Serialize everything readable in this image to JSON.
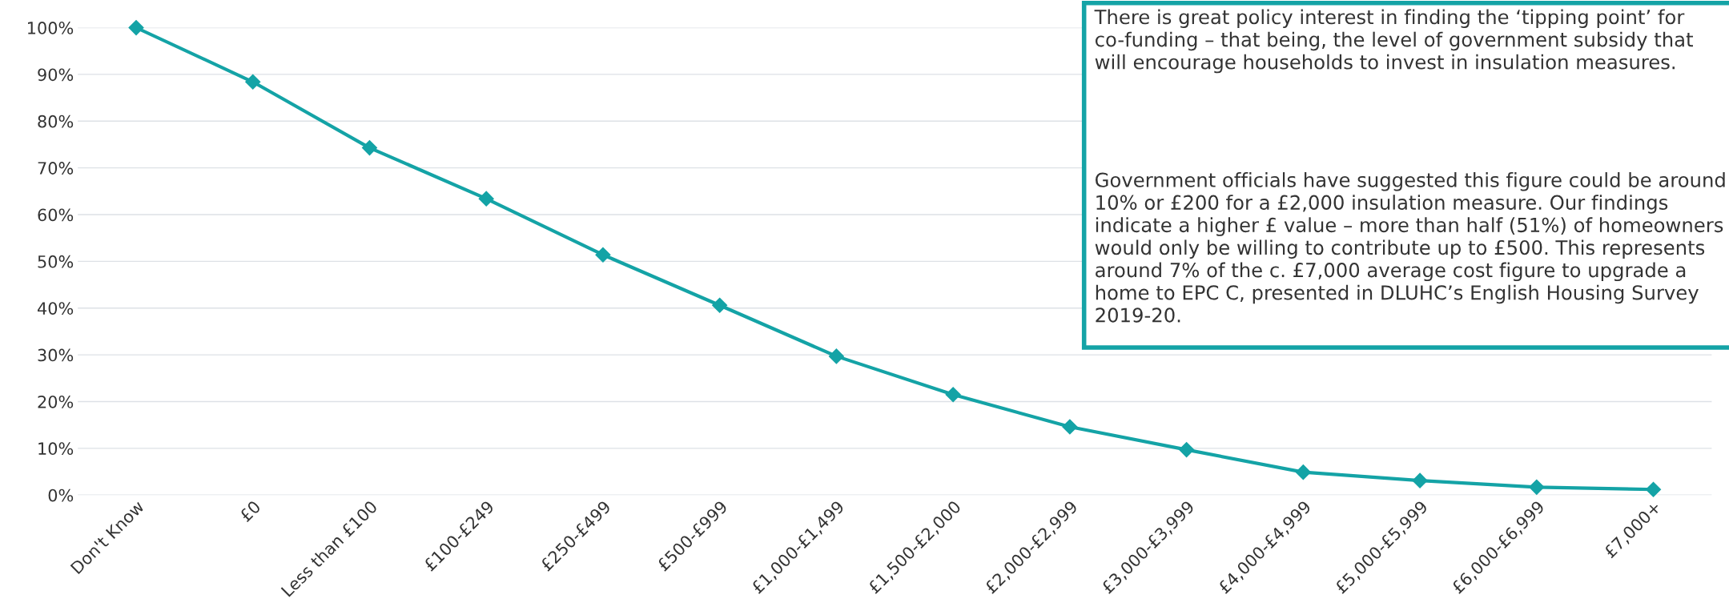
{
  "chart_data": {
    "type": "line",
    "categories": [
      "Don't Know",
      "£0",
      "Less than £100",
      "£100-£249",
      "£250-£499",
      "£500-£999",
      "£1,000-£1,499",
      "£1,500-£2,000",
      "£2,000-£2,999",
      "£3,000-£3,999",
      "£4,000-£4,999",
      "£5,000-£5,999",
      "£6,000-£6,999",
      "£7,000+"
    ],
    "series": [
      {
        "color": "#14a3a6",
        "values": [
          100,
          88.4,
          74.3,
          63.4,
          51.4,
          40.6,
          29.7,
          21.5,
          14.6,
          9.7,
          4.9,
          3.1,
          1.7,
          1.2
        ]
      }
    ],
    "ylim": [
      0,
      100
    ],
    "yticks": [
      {
        "value": 0,
        "label": "0%"
      },
      {
        "value": 10,
        "label": "10%"
      },
      {
        "value": 20,
        "label": "20%"
      },
      {
        "value": 30,
        "label": "30%"
      },
      {
        "value": 40,
        "label": "40%"
      },
      {
        "value": 50,
        "label": "50%"
      },
      {
        "value": 60,
        "label": "60%"
      },
      {
        "value": 70,
        "label": "70%"
      },
      {
        "value": 80,
        "label": "80%"
      },
      {
        "value": 90,
        "label": "90%"
      },
      {
        "value": 100,
        "label": "100%"
      }
    ],
    "grid": "y",
    "marker": "diamond",
    "line_style": "solid",
    "annotations": [
      "There is great policy interest in finding the ‘tipping point’ for co-funding – that being, the level of government subsidy that will encourage households to invest in insulation measures.",
      "Government officials have suggested this figure could be around 10% or £200 for a £2,000 insulation measure. Our findings indicate a higher £ value – more than half (51%) of homeowners would only be willing to contribute up to £500. This represents around 7% of the c. £7,000 average cost figure to upgrade a home to EPC C, presented in DLUHC’s English Housing Survey 2019-20."
    ]
  }
}
